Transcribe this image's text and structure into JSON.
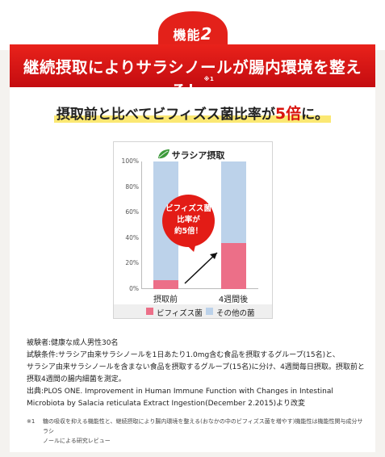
{
  "badge": {
    "label": "機能",
    "number": "2",
    "color": "#e3211a"
  },
  "banner": {
    "title": "継続摂取によりサラシノールが腸内環境を整える！",
    "note_mark": "※1",
    "color": "#d4151a"
  },
  "headline": {
    "prefix": "摂取前と比べてビフィズス菌比率が",
    "highlight": "5倍",
    "suffix": "に。"
  },
  "chart": {
    "title": "サラシア摂取",
    "title_icon": "leaf-icon",
    "callout_lines": [
      "ビフィズス菌",
      "比率が",
      "約5倍！"
    ],
    "legend": [
      {
        "label": "ビフィズス菌",
        "color": "#ec6f88"
      },
      {
        "label": "その他の菌",
        "color": "#bcd2ea"
      }
    ]
  },
  "chart_data": {
    "type": "bar",
    "stacked": true,
    "title": "サラシア摂取",
    "categories": [
      "摂取前",
      "4週間後"
    ],
    "series": [
      {
        "name": "ビフィズス菌",
        "values": [
          7,
          36
        ]
      },
      {
        "name": "その他の菌",
        "values": [
          93,
          64
        ]
      }
    ],
    "yticks": [
      "0%",
      "20%",
      "40%",
      "60%",
      "80%",
      "100%"
    ],
    "ylim": [
      0,
      100
    ],
    "grid": false,
    "legend_position": "bottom"
  },
  "notes": {
    "lines": [
      "被験者:健康な成人男性30名",
      "試験条件:サラシア由来サラシノールを1日あたり1.0mg含む食品を摂取するグループ(15名)と、",
      "サラシア由来サラシノールを含まない食品を摂取するグループ(15名)に分け、4週間毎日摂取。摂取前と",
      "摂取4週間の腸内細菌を測定。",
      "出典:PLOS ONE. Improvement in Human Immune Function with Changes in Intestinal",
      "Microbiota by Salacia reticulata Extract Ingestion(December 2.2015)より改変"
    ],
    "footnote_mark": "※1",
    "footnote_lines": [
      "糖の吸収を抑える機能性と、継続摂取により腸内環境を整える(おなかの中のビフィズス菌を増やす)機能性は機能性関与成分サラシ",
      "ノールによる研究レビュー"
    ]
  }
}
